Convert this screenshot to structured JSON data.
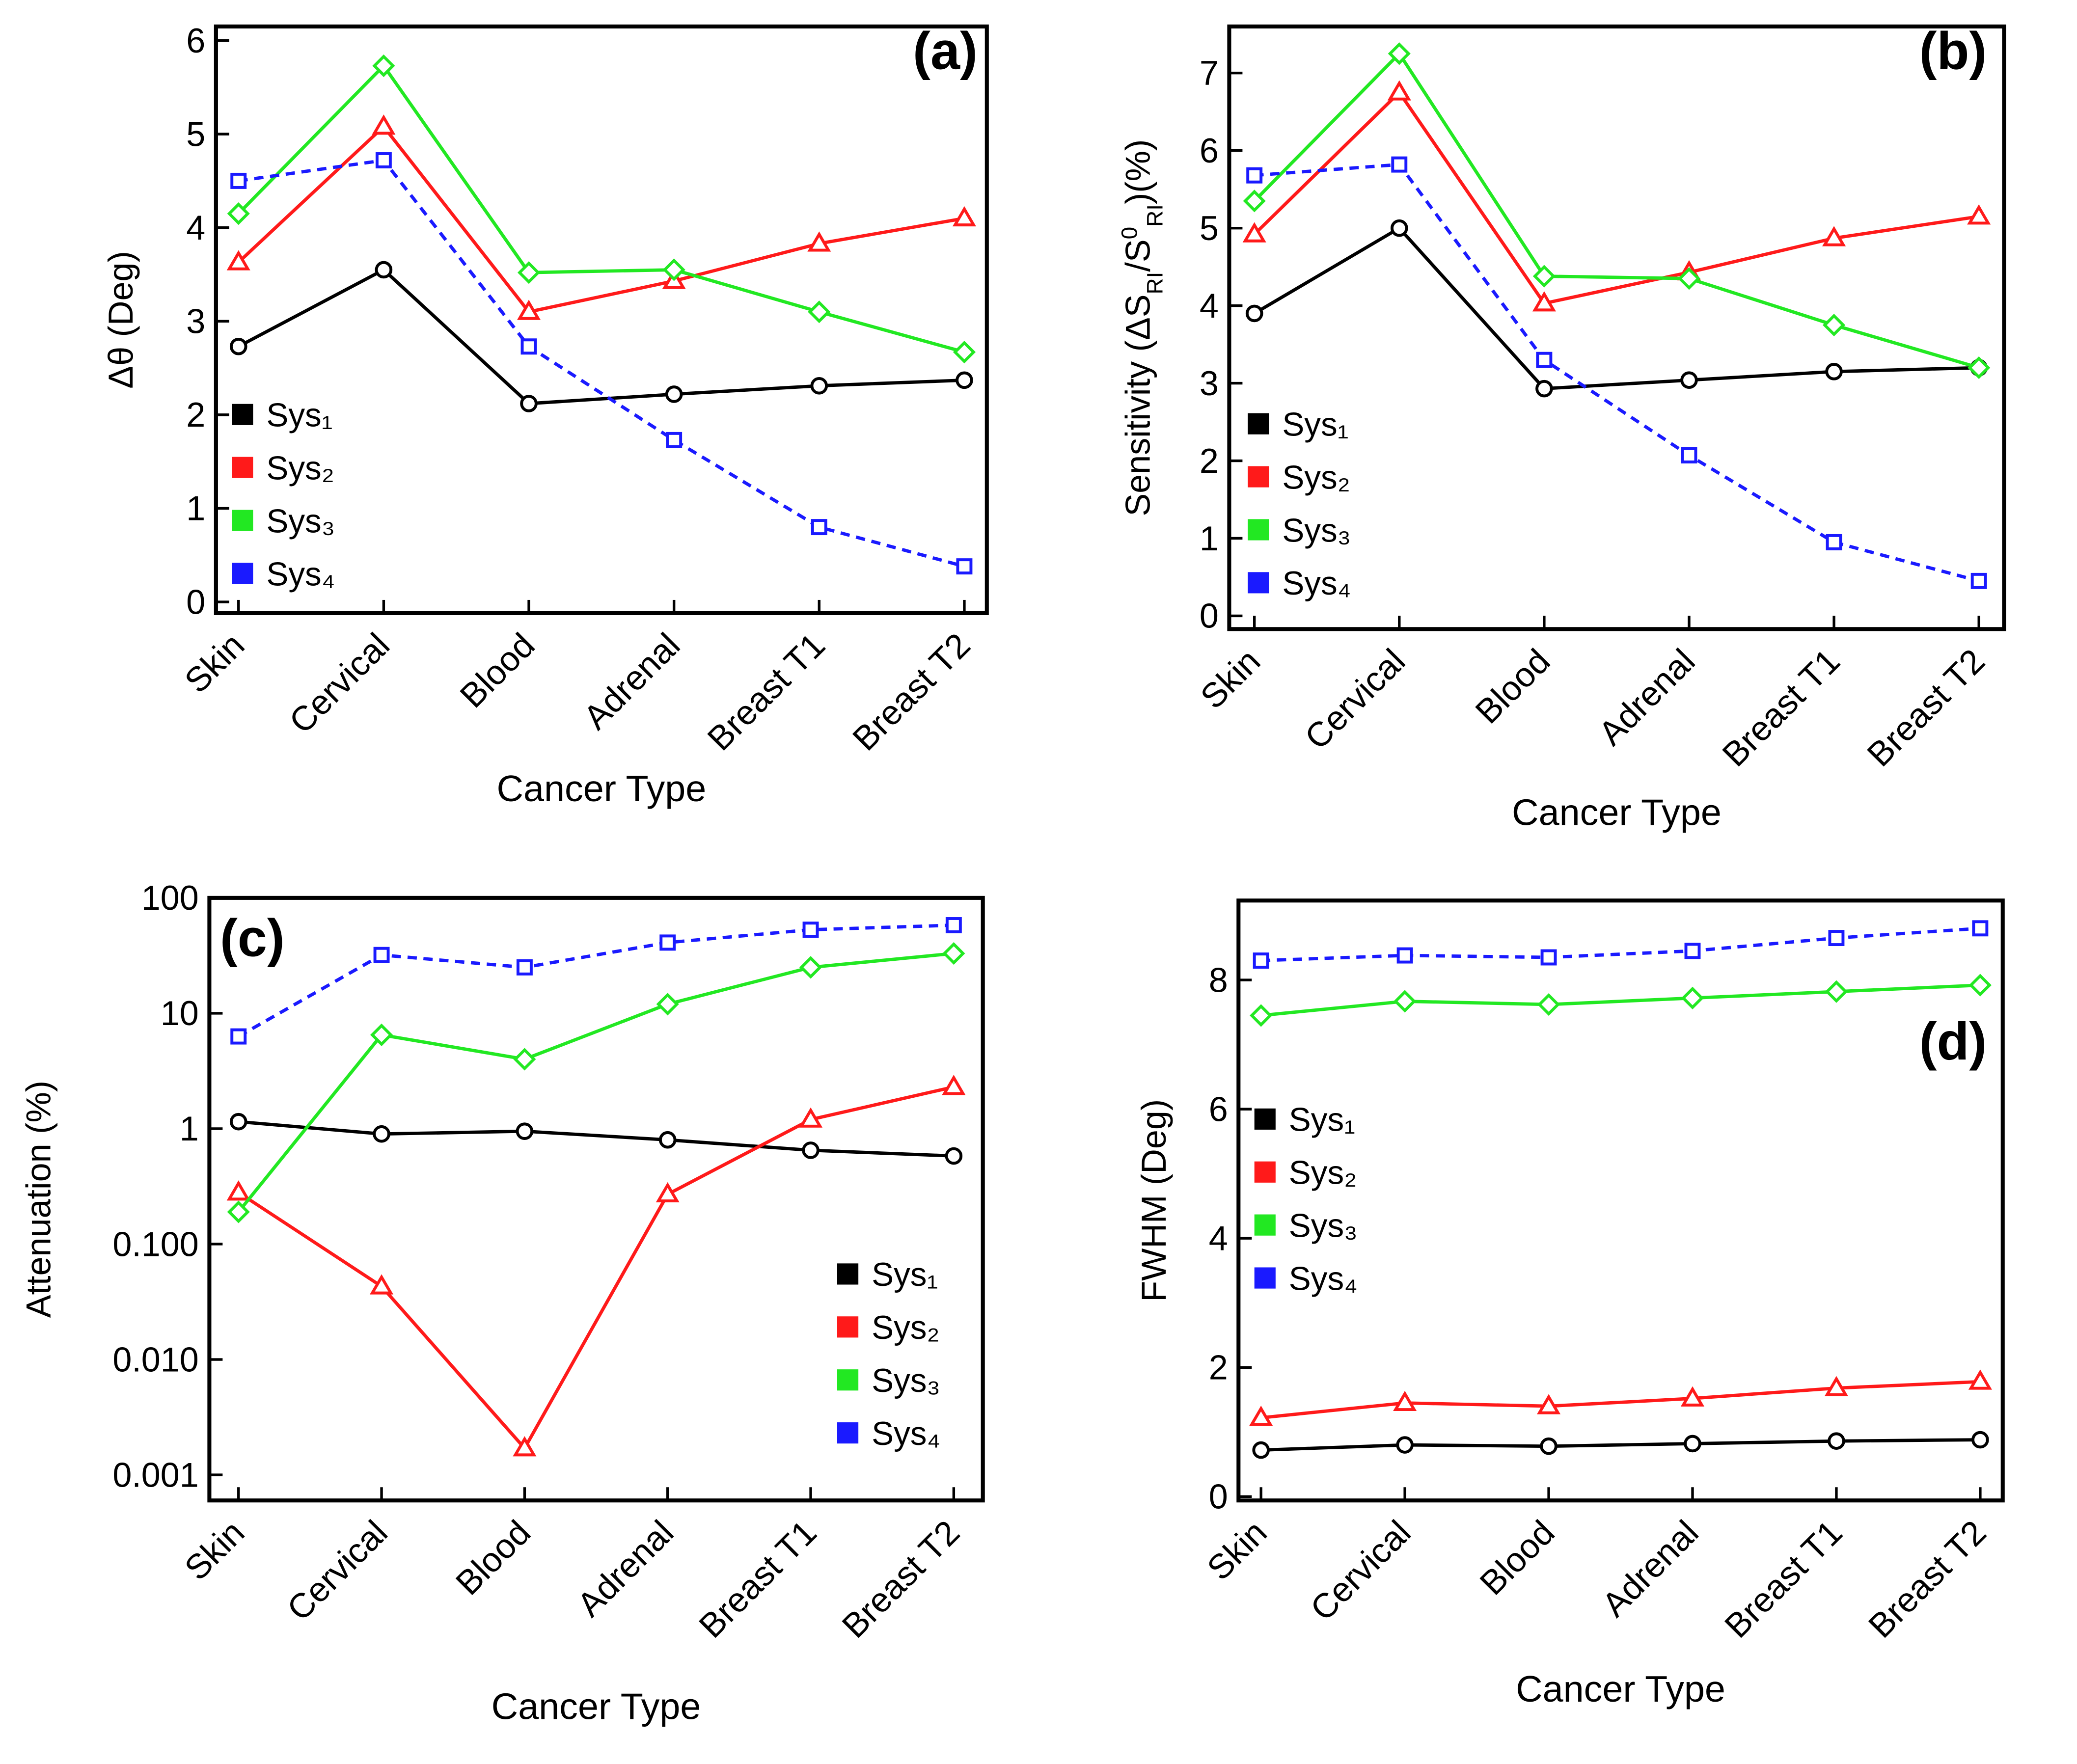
{
  "chart_data": [
    {
      "type": "line",
      "label": "(a)",
      "xlabel": "Cancer Type",
      "ylabel": "Δθ (Deg)",
      "categories": [
        "Skin",
        "Cervical",
        "Blood",
        "Adrenal",
        "Breast T1",
        "Breast T2"
      ],
      "ylim": [
        -0.12,
        6.15
      ],
      "yticks": [
        0,
        1,
        2,
        3,
        4,
        5,
        6
      ],
      "legend": "lower left",
      "series": [
        {
          "name": "Sys₁",
          "color": "#000000",
          "marker": "circle",
          "dashed": false,
          "values": [
            2.73,
            3.55,
            2.12,
            2.22,
            2.31,
            2.37
          ]
        },
        {
          "name": "Sys₂",
          "color": "#ff1a1a",
          "marker": "triangle",
          "dashed": false,
          "values": [
            3.63,
            5.08,
            3.1,
            3.43,
            3.83,
            4.1
          ]
        },
        {
          "name": "Sys₃",
          "color": "#22e822",
          "marker": "diamond",
          "dashed": false,
          "values": [
            4.15,
            5.73,
            3.52,
            3.55,
            3.1,
            2.67
          ]
        },
        {
          "name": "Sys₄",
          "color": "#1a1aff",
          "marker": "square",
          "dashed": true,
          "values": [
            4.5,
            4.72,
            2.73,
            1.73,
            0.8,
            0.38
          ]
        }
      ]
    },
    {
      "type": "line",
      "label": "(b)",
      "xlabel": "Cancer Type",
      "ylabel": [
        {
          "text": "Sensitivity (ΔS"
        },
        {
          "text": "RI",
          "shift": "sub"
        },
        {
          "text": "/S"
        },
        {
          "text": "0",
          "shift": "super"
        },
        {
          "text": "RI",
          "shift": "sub"
        },
        {
          "text": ")(%)"
        }
      ],
      "categories": [
        "Skin",
        "Cervical",
        "Blood",
        "Adrenal",
        "Breast T1",
        "Breast T2"
      ],
      "ylim": [
        -0.17,
        7.6
      ],
      "yticks": [
        0,
        1,
        2,
        3,
        4,
        5,
        6,
        7
      ],
      "legend": "lower left",
      "series": [
        {
          "name": "Sys₁",
          "color": "#000000",
          "marker": "circle",
          "dashed": false,
          "values": [
            3.9,
            5.0,
            2.93,
            3.04,
            3.15,
            3.2
          ]
        },
        {
          "name": "Sys₂",
          "color": "#ff1a1a",
          "marker": "triangle",
          "dashed": false,
          "values": [
            4.92,
            6.75,
            4.03,
            4.43,
            4.87,
            5.15
          ]
        },
        {
          "name": "Sys₃",
          "color": "#22e822",
          "marker": "diamond",
          "dashed": false,
          "values": [
            5.35,
            7.25,
            4.38,
            4.35,
            3.75,
            3.2
          ]
        },
        {
          "name": "Sys₄",
          "color": "#1a1aff",
          "marker": "square",
          "dashed": true,
          "values": [
            5.68,
            5.82,
            3.3,
            2.07,
            0.95,
            0.45
          ]
        }
      ]
    },
    {
      "type": "line",
      "label": "(c)",
      "xlabel": "Cancer Type",
      "ylabel": "Attenuation (%)",
      "log": true,
      "categories": [
        "Skin",
        "Cervical",
        "Blood",
        "Adrenal",
        "Breast T1",
        "Breast T2"
      ],
      "ylim": [
        0.0006,
        100
      ],
      "yticks": [
        0.001,
        {
          "value": 0.01,
          "label": "0.010"
        },
        {
          "value": 0.1,
          "label": "0.100"
        },
        1,
        10,
        100
      ],
      "legend": "lower right",
      "series": [
        {
          "name": "Sys₁",
          "color": "#000000",
          "marker": "circle",
          "dashed": false,
          "values": [
            1.15,
            0.9,
            0.95,
            0.8,
            0.65,
            0.58
          ]
        },
        {
          "name": "Sys₂",
          "color": "#ff1a1a",
          "marker": "triangle",
          "dashed": false,
          "values": [
            0.28,
            0.043,
            0.0017,
            0.27,
            1.2,
            2.3
          ]
        },
        {
          "name": "Sys₃",
          "color": "#22e822",
          "marker": "diamond",
          "dashed": false,
          "values": [
            0.19,
            6.5,
            4.0,
            12,
            25,
            33
          ]
        },
        {
          "name": "Sys₄",
          "color": "#1a1aff",
          "marker": "square",
          "dashed": true,
          "values": [
            6.3,
            32,
            25,
            41,
            53,
            58
          ]
        }
      ]
    },
    {
      "type": "line",
      "label": "(d)",
      "xlabel": "Cancer Type",
      "ylabel": "FWHM (Deg)",
      "categories": [
        "Skin",
        "Cervical",
        "Blood",
        "Adrenal",
        "Breast T1",
        "Breast T2"
      ],
      "ylim": [
        -0.06,
        9.23
      ],
      "yticks": [
        0,
        2,
        4,
        6,
        8
      ],
      "legend": "lower left",
      "series": [
        {
          "name": "Sys₁",
          "color": "#000000",
          "marker": "circle",
          "dashed": false,
          "values": [
            0.72,
            0.8,
            0.78,
            0.82,
            0.86,
            0.88
          ]
        },
        {
          "name": "Sys₂",
          "color": "#ff1a1a",
          "marker": "triangle",
          "dashed": false,
          "values": [
            1.22,
            1.45,
            1.4,
            1.52,
            1.68,
            1.78
          ]
        },
        {
          "name": "Sys₃",
          "color": "#22e822",
          "marker": "diamond",
          "dashed": false,
          "values": [
            7.45,
            7.67,
            7.62,
            7.72,
            7.82,
            7.92
          ]
        },
        {
          "name": "Sys₄",
          "color": "#1a1aff",
          "marker": "square",
          "dashed": true,
          "values": [
            8.3,
            8.38,
            8.35,
            8.45,
            8.65,
            8.8
          ]
        }
      ]
    }
  ]
}
